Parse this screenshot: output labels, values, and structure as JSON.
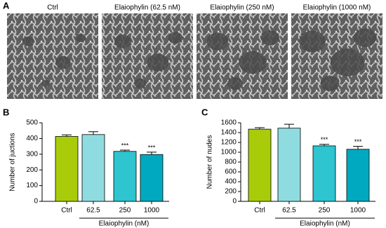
{
  "panel_a": {
    "label": "A",
    "titles": [
      "Ctrl",
      "Elaiophylin (62.5 nM)",
      "Elaiophylin (250 nM)",
      "Elaiophylin (1000 nM)"
    ]
  },
  "chart_data": [
    {
      "type": "bar",
      "panel_label": "B",
      "y_label": "Number of juctions",
      "categories": [
        "Ctrl",
        "62.5",
        "250",
        "1000"
      ],
      "values": [
        413,
        425,
        318,
        298
      ],
      "errors": [
        10,
        18,
        8,
        15
      ],
      "significance": [
        null,
        null,
        "***",
        "***"
      ],
      "colors": [
        "#a8cc0a",
        "#8fdce0",
        "#2ec4d0",
        "#00a9bf"
      ],
      "x_group_label": "Elaiophylin (nM)",
      "ylim": [
        0,
        500
      ],
      "yticks": [
        0,
        100,
        200,
        300,
        400,
        500
      ]
    },
    {
      "type": "bar",
      "panel_label": "C",
      "y_label": "Number of nudes",
      "categories": [
        "Ctrl",
        "62.5",
        "250",
        "1000"
      ],
      "values": [
        1470,
        1490,
        1130,
        1060
      ],
      "errors": [
        30,
        80,
        30,
        60
      ],
      "significance": [
        null,
        null,
        "***",
        "***"
      ],
      "colors": [
        "#a8cc0a",
        "#8fdce0",
        "#2ec4d0",
        "#00a9bf"
      ],
      "x_group_label": "Elaiophylin (nM)",
      "ylim": [
        0,
        1600
      ],
      "yticks": [
        0,
        200,
        400,
        600,
        800,
        1000,
        1200,
        1400,
        1600
      ]
    }
  ]
}
